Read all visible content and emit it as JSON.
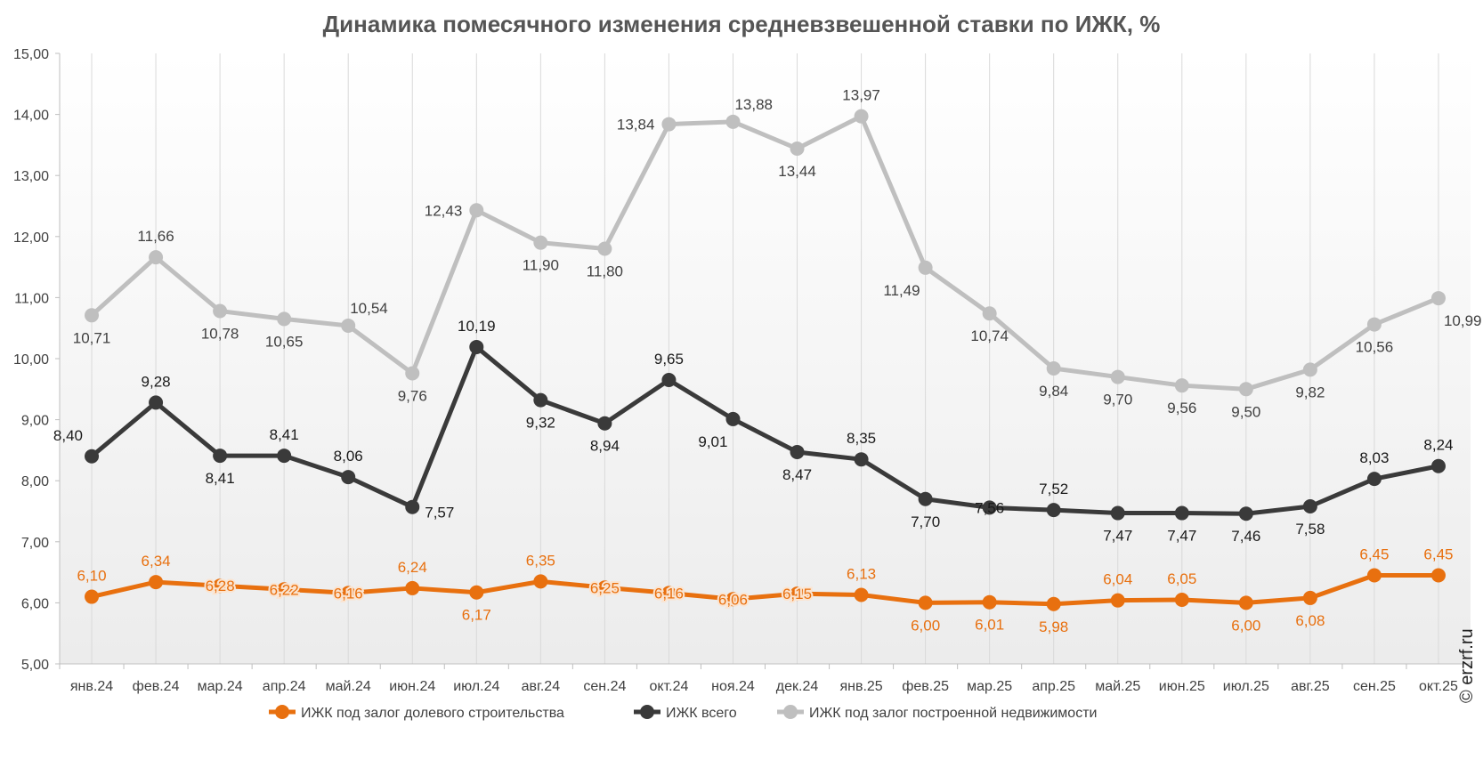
{
  "chart_data": {
    "type": "line",
    "title": "Динамика помесячного изменения средневзвешенной ставки по ИЖК, %",
    "categories": [
      "янв.24",
      "фев.24",
      "мар.24",
      "апр.24",
      "май.24",
      "июн.24",
      "июл.24",
      "авг.24",
      "сен.24",
      "окт.24",
      "ноя.24",
      "дек.24",
      "янв.25",
      "фев.25",
      "мар.25",
      "апр.25",
      "май.25",
      "июн.25",
      "июл.25",
      "авг.25",
      "сен.25",
      "окт.25"
    ],
    "yticks": [
      "5,00",
      "6,00",
      "7,00",
      "8,00",
      "9,00",
      "10,00",
      "11,00",
      "12,00",
      "13,00",
      "14,00",
      "15,00"
    ],
    "ylim": [
      5,
      15
    ],
    "grid": "vertical",
    "legend_position": "bottom",
    "series": [
      {
        "name": "ИЖК под залог долевого строительства",
        "color": "#E8700F",
        "label_color": "#E8700F",
        "values": [
          6.1,
          6.34,
          6.28,
          6.22,
          6.16,
          6.24,
          6.17,
          6.35,
          6.25,
          6.16,
          6.06,
          6.15,
          6.13,
          6.0,
          6.01,
          5.98,
          6.04,
          6.05,
          6.0,
          6.08,
          6.45,
          6.45
        ],
        "labels": [
          "6,10",
          "6,34",
          "6,28",
          "6,22",
          "6,16",
          "6,24",
          "6,17",
          "6,35",
          "6,25",
          "6,16",
          "6,06",
          "6,15",
          "6,13",
          "6,00",
          "6,01",
          "5,98",
          "6,04",
          "6,05",
          "6,00",
          "6,08",
          "6,45",
          "6,45"
        ],
        "label_pos": [
          "above",
          "above",
          "center",
          "center",
          "center",
          "above",
          "below",
          "above",
          "center",
          "center",
          "center",
          "center",
          "above",
          "below",
          "below",
          "below",
          "above",
          "above",
          "below",
          "below",
          "above",
          "above"
        ]
      },
      {
        "name": "ИЖК всего",
        "color": "#3A3A3A",
        "label_color": "#1A1A1A",
        "values": [
          8.4,
          9.28,
          8.41,
          8.41,
          8.06,
          7.57,
          10.19,
          9.32,
          8.94,
          9.65,
          9.01,
          8.47,
          8.35,
          7.7,
          7.56,
          7.52,
          7.47,
          7.47,
          7.46,
          7.58,
          8.03,
          8.24
        ],
        "labels": [
          "8,40",
          "9,28",
          "8,41",
          "8,41",
          "8,06",
          "7,57",
          "10,19",
          "9,32",
          "8,94",
          "9,65",
          "9,01",
          "8,47",
          "8,35",
          "7,70",
          "7,56",
          "7,52",
          "7,47",
          "7,47",
          "7,46",
          "7,58",
          "8,03",
          "8,24"
        ],
        "label_pos": [
          "left-above",
          "above",
          "below",
          "above",
          "above",
          "right-below",
          "above",
          "below",
          "below",
          "above",
          "below-left",
          "below",
          "above",
          "below",
          "center",
          "above",
          "below",
          "below",
          "below",
          "below",
          "above",
          "above"
        ]
      },
      {
        "name": "ИЖК под залог построенной недвижимости",
        "color": "#BFBFBF",
        "label_color": "#404040",
        "values": [
          10.71,
          11.66,
          10.78,
          10.65,
          10.54,
          9.76,
          12.43,
          11.9,
          11.8,
          13.84,
          13.88,
          13.44,
          13.97,
          11.49,
          10.74,
          9.84,
          9.7,
          9.56,
          9.5,
          9.82,
          10.56,
          10.99
        ],
        "labels": [
          "10,71",
          "11,66",
          "10,78",
          "10,65",
          "10,54",
          "9,76",
          "12,43",
          "11,90",
          "11,80",
          "13,84",
          "13,88",
          "13,44",
          "13,97",
          "11,49",
          "10,74",
          "9,84",
          "9,70",
          "9,56",
          "9,50",
          "9,82",
          "10,56",
          "10,99"
        ],
        "label_pos": [
          "below",
          "above",
          "below",
          "below",
          "right-above",
          "below",
          "left",
          "below",
          "below",
          "left",
          "right-above",
          "below",
          "above",
          "below-left",
          "below",
          "below",
          "below",
          "below",
          "below",
          "below",
          "below",
          "below-right"
        ]
      }
    ]
  },
  "watermark": "© erzrf.ru"
}
